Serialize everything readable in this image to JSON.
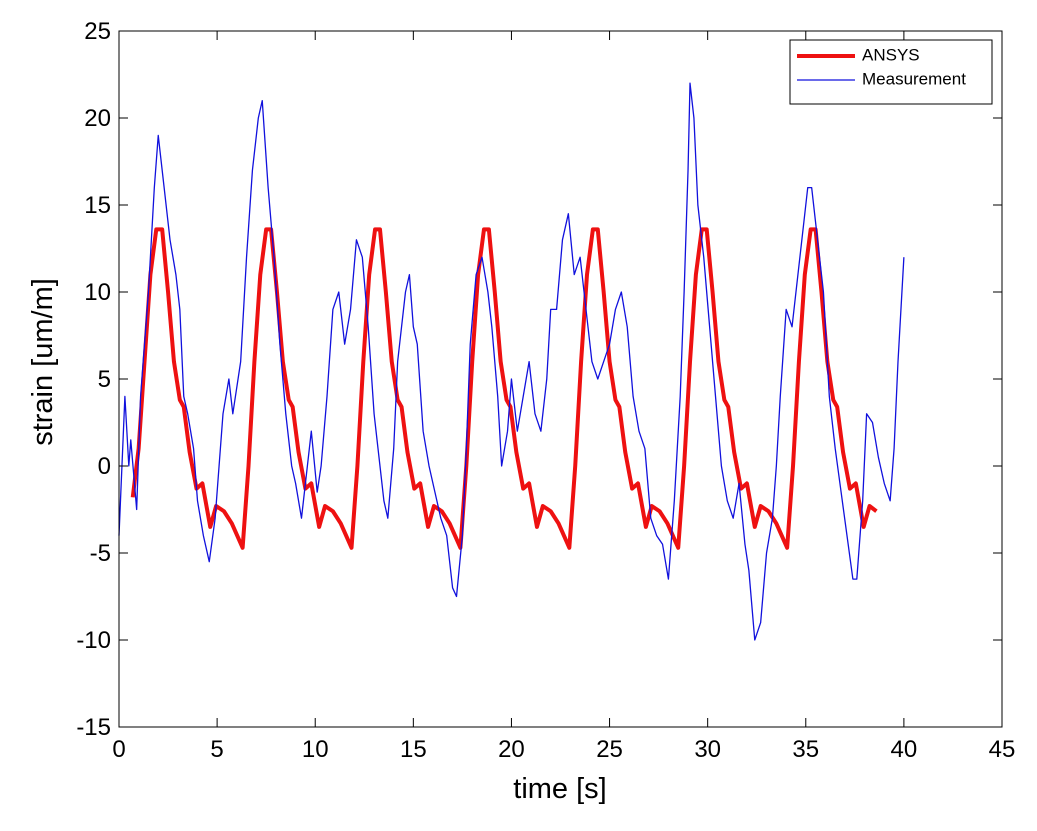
{
  "chart_data": {
    "type": "line",
    "xlabel": "time [s]",
    "ylabel": "strain [um/m]",
    "xlim": [
      0,
      45
    ],
    "xticks": [
      0,
      5,
      10,
      15,
      20,
      25,
      30,
      35,
      40,
      45
    ],
    "ylim": [
      -15,
      25
    ],
    "yticks": [
      -15,
      -10,
      -5,
      0,
      5,
      10,
      15,
      20,
      25
    ],
    "legend": "upper right",
    "series": [
      {
        "name": "ANSYS",
        "color": "#ee1111",
        "x": [
          0.7,
          1.0,
          1.3,
          1.6,
          1.9,
          2.2,
          2.5,
          2.8,
          3.1,
          3.3,
          3.6,
          3.95,
          4.25,
          4.65,
          4.95,
          5.35,
          5.75,
          6.3,
          6.6,
          6.9,
          7.2,
          7.5,
          7.75,
          8.05,
          8.35,
          8.65,
          8.85,
          9.15,
          9.5,
          9.8,
          10.2,
          10.5,
          10.9,
          11.3,
          11.85,
          12.15,
          12.45,
          12.75,
          13.05,
          13.3,
          13.6,
          13.9,
          14.2,
          14.4,
          14.7,
          15.05,
          15.35,
          15.75,
          16.05,
          16.45,
          16.85,
          17.4,
          17.7,
          18.0,
          18.3,
          18.6,
          18.85,
          19.15,
          19.45,
          19.75,
          19.95,
          20.25,
          20.6,
          20.9,
          21.3,
          21.6,
          22.0,
          22.4,
          22.95,
          23.25,
          23.55,
          23.85,
          24.15,
          24.4,
          24.7,
          25.0,
          25.3,
          25.5,
          25.8,
          26.15,
          26.45,
          26.85,
          27.15,
          27.55,
          27.95,
          28.5,
          28.8,
          29.1,
          29.4,
          29.7,
          29.95,
          30.25,
          30.55,
          30.85,
          31.05,
          31.35,
          31.7,
          32.0,
          32.4,
          32.7,
          33.1,
          33.5,
          34.05,
          34.35,
          34.65,
          34.95,
          35.25,
          35.5,
          35.8,
          36.1,
          36.4,
          36.6,
          36.9,
          37.25,
          37.55,
          37.95,
          38.25,
          38.6
        ],
        "values": [
          -1.8,
          1,
          6,
          11,
          13.6,
          13.6,
          10,
          6,
          3.8,
          3.4,
          0.8,
          -1.3,
          -1,
          -3.5,
          -2.3,
          -2.6,
          -3.3,
          -4.7,
          0,
          6,
          11,
          13.6,
          13.6,
          10,
          6,
          3.8,
          3.4,
          0.8,
          -1.3,
          -1,
          -3.5,
          -2.3,
          -2.6,
          -3.3,
          -4.7,
          0,
          6,
          11,
          13.6,
          13.6,
          10,
          6,
          3.8,
          3.4,
          0.8,
          -1.3,
          -1,
          -3.5,
          -2.3,
          -2.6,
          -3.3,
          -4.7,
          0,
          6,
          11,
          13.6,
          13.6,
          10,
          6,
          3.8,
          3.4,
          0.8,
          -1.3,
          -1,
          -3.5,
          -2.3,
          -2.6,
          -3.3,
          -4.7,
          0,
          6,
          11,
          13.6,
          13.6,
          10,
          6,
          3.8,
          3.4,
          0.8,
          -1.3,
          -1,
          -3.5,
          -2.3,
          -2.6,
          -3.3,
          -4.7,
          0,
          6,
          11,
          13.6,
          13.6,
          10,
          6,
          3.8,
          3.4,
          0.8,
          -1.3,
          -1,
          -3.5,
          -2.3,
          -2.6,
          -3.3,
          -4.7,
          0,
          6,
          11,
          13.6,
          13.6,
          10,
          6,
          3.8,
          3.4,
          0.8,
          -1.3,
          -1,
          -3.5,
          -2.3,
          -2.6
        ]
      },
      {
        "name": "Measurement",
        "color": "#1111dd",
        "x": [
          0,
          0.3,
          0.5,
          0.6,
          0.9,
          1.1,
          1.5,
          1.8,
          2.0,
          2.3,
          2.6,
          2.9,
          3.1,
          3.3,
          3.5,
          3.8,
          4.0,
          4.3,
          4.6,
          4.9,
          5.1,
          5.3,
          5.6,
          5.8,
          6.2,
          6.5,
          6.8,
          7.1,
          7.3,
          7.6,
          7.9,
          8.2,
          8.5,
          8.8,
          9.0,
          9.3,
          9.5,
          9.8,
          10.1,
          10.3,
          10.6,
          10.9,
          11.2,
          11.5,
          11.8,
          12.1,
          12.4,
          12.7,
          13.0,
          13.2,
          13.5,
          13.7,
          14.0,
          14.2,
          14.4,
          14.6,
          14.8,
          15.0,
          15.2,
          15.5,
          15.8,
          16.1,
          16.4,
          16.7,
          17.0,
          17.2,
          17.5,
          17.7,
          17.9,
          18.2,
          18.5,
          18.8,
          19.0,
          19.3,
          19.5,
          19.8,
          20.0,
          20.3,
          20.6,
          20.9,
          21.2,
          21.5,
          21.8,
          22.0,
          22.3,
          22.6,
          22.9,
          23.2,
          23.5,
          23.8,
          24.1,
          24.4,
          24.7,
          25.0,
          25.3,
          25.6,
          25.9,
          26.2,
          26.5,
          26.8,
          27.1,
          27.4,
          27.7,
          28.0,
          28.3,
          28.6,
          28.8,
          29.0,
          29.1,
          29.3,
          29.5,
          29.8,
          30.1,
          30.4,
          30.7,
          31.0,
          31.3,
          31.6,
          31.9,
          32.1,
          32.4,
          32.7,
          33.0,
          33.3,
          33.5,
          33.7,
          34.0,
          34.3,
          34.6,
          34.9,
          35.1,
          35.3,
          35.6,
          35.9,
          36.2,
          36.5,
          36.8,
          37.1,
          37.4,
          37.6,
          37.9,
          38.1,
          38.4,
          38.7,
          39.0,
          39.3,
          39.5,
          39.7,
          40.0
        ],
        "values": [
          -4,
          4,
          0,
          1.5,
          -2.5,
          4,
          10,
          16,
          19,
          16,
          13,
          11,
          9,
          4,
          3,
          1,
          -2,
          -4,
          -5.5,
          -3,
          0,
          3,
          5,
          3,
          6,
          12,
          17,
          20,
          21,
          16,
          12,
          7,
          3,
          0,
          -1,
          -3,
          -1,
          2,
          -1.5,
          0,
          4,
          9,
          10,
          7,
          9,
          13,
          12,
          8,
          3,
          1,
          -2,
          -3,
          1,
          6,
          8,
          10,
          11,
          8,
          7,
          2,
          0,
          -1.5,
          -3,
          -4,
          -7,
          -7.5,
          -4,
          1,
          7,
          11,
          12,
          10,
          8,
          4,
          0,
          2,
          5,
          2,
          4,
          6,
          3,
          2,
          5,
          9,
          9,
          13,
          14.5,
          11,
          12,
          9,
          6,
          5,
          6,
          7,
          9,
          10,
          8,
          4,
          2,
          1,
          -3,
          -4,
          -4.5,
          -6.5,
          -2,
          4,
          10,
          17,
          22,
          20,
          15,
          12,
          8,
          4,
          0,
          -2,
          -3,
          -1,
          -4.5,
          -6,
          -10,
          -9,
          -5,
          -3,
          0,
          4,
          9,
          8,
          11,
          14,
          16,
          16,
          13,
          10,
          4,
          1,
          -1.5,
          -4,
          -6.5,
          -6.5,
          -2,
          3,
          2.5,
          0.5,
          -1,
          -2,
          1,
          6,
          12
        ]
      }
    ]
  }
}
